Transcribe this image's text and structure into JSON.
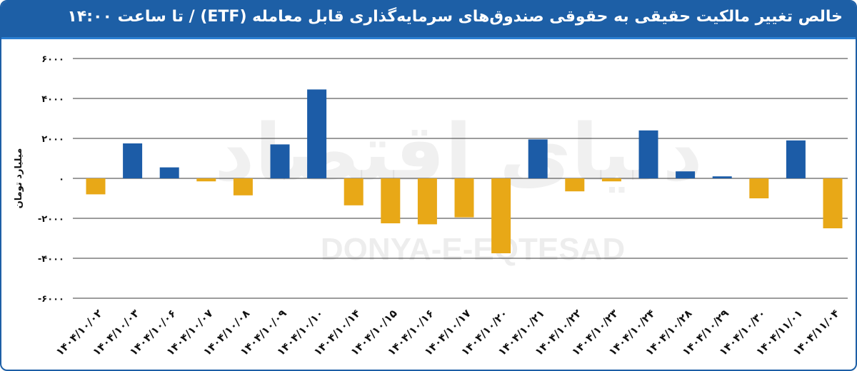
{
  "header": {
    "title": "خالص تغییر مالکیت حقیقی به حقوقی صندوق‌های سرمایه‌گذاری قابل معامله (ETF) / تا ساعت ۱۴:۰۰"
  },
  "watermark": {
    "text_fa": "دنیای اقتصاد",
    "text_en": "DONYA-E-EQTESAD"
  },
  "colors": {
    "header": "#1d5fa6",
    "positive": "#1c5ca7",
    "negative": "#e8a817"
  },
  "chart_data": {
    "type": "bar",
    "title": "خالص تغییر مالکیت حقیقی به حقوقی صندوق‌های سرمایه‌گذاری قابل معامله (ETF) / تا ساعت ۱۴:۰۰",
    "xlabel": "",
    "ylabel": "میلیارد تومان",
    "ylim": [
      -6000,
      6000
    ],
    "yticks": [
      6000,
      4000,
      2000,
      0,
      -2000,
      -4000,
      -6000
    ],
    "ytick_labels": [
      "۶۰۰۰",
      "۴۰۰۰",
      "۲۰۰۰",
      "۰",
      "-۲۰۰۰",
      "-۴۰۰۰",
      "-۶۰۰۰"
    ],
    "grid": true,
    "legend": "none",
    "categories": [
      "۱۴۰۴/۱۰/۰۲",
      "۱۴۰۴/۱۰/۰۳",
      "۱۴۰۴/۱۰/۰۶",
      "۱۴۰۴/۱۰/۰۷",
      "۱۴۰۴/۱۰/۰۸",
      "۱۴۰۴/۱۰/۰۹",
      "۱۴۰۴/۱۰/۱۰",
      "۱۴۰۴/۱۰/۱۴",
      "۱۴۰۴/۱۰/۱۵",
      "۱۴۰۴/۱۰/۱۶",
      "۱۴۰۴/۱۰/۱۷",
      "۱۴۰۴/۱۰/۲۰",
      "۱۴۰۴/۱۰/۲۱",
      "۱۴۰۴/۱۰/۲۲",
      "۱۴۰۴/۱۰/۲۳",
      "۱۴۰۴/۱۰/۲۴",
      "۱۴۰۴/۱۰/۲۸",
      "۱۴۰۴/۱۰/۲۹",
      "۱۴۰۴/۱۰/۳۰",
      "۱۴۰۴/۱۱/۰۱",
      "۱۴۰۴/۱۱/۰۴"
    ],
    "values": [
      -800,
      1750,
      550,
      -150,
      -850,
      1700,
      4450,
      -1350,
      -2250,
      -2300,
      -1950,
      -3750,
      1950,
      -650,
      -150,
      2400,
      350,
      100,
      -1000,
      1900,
      -2500
    ]
  }
}
